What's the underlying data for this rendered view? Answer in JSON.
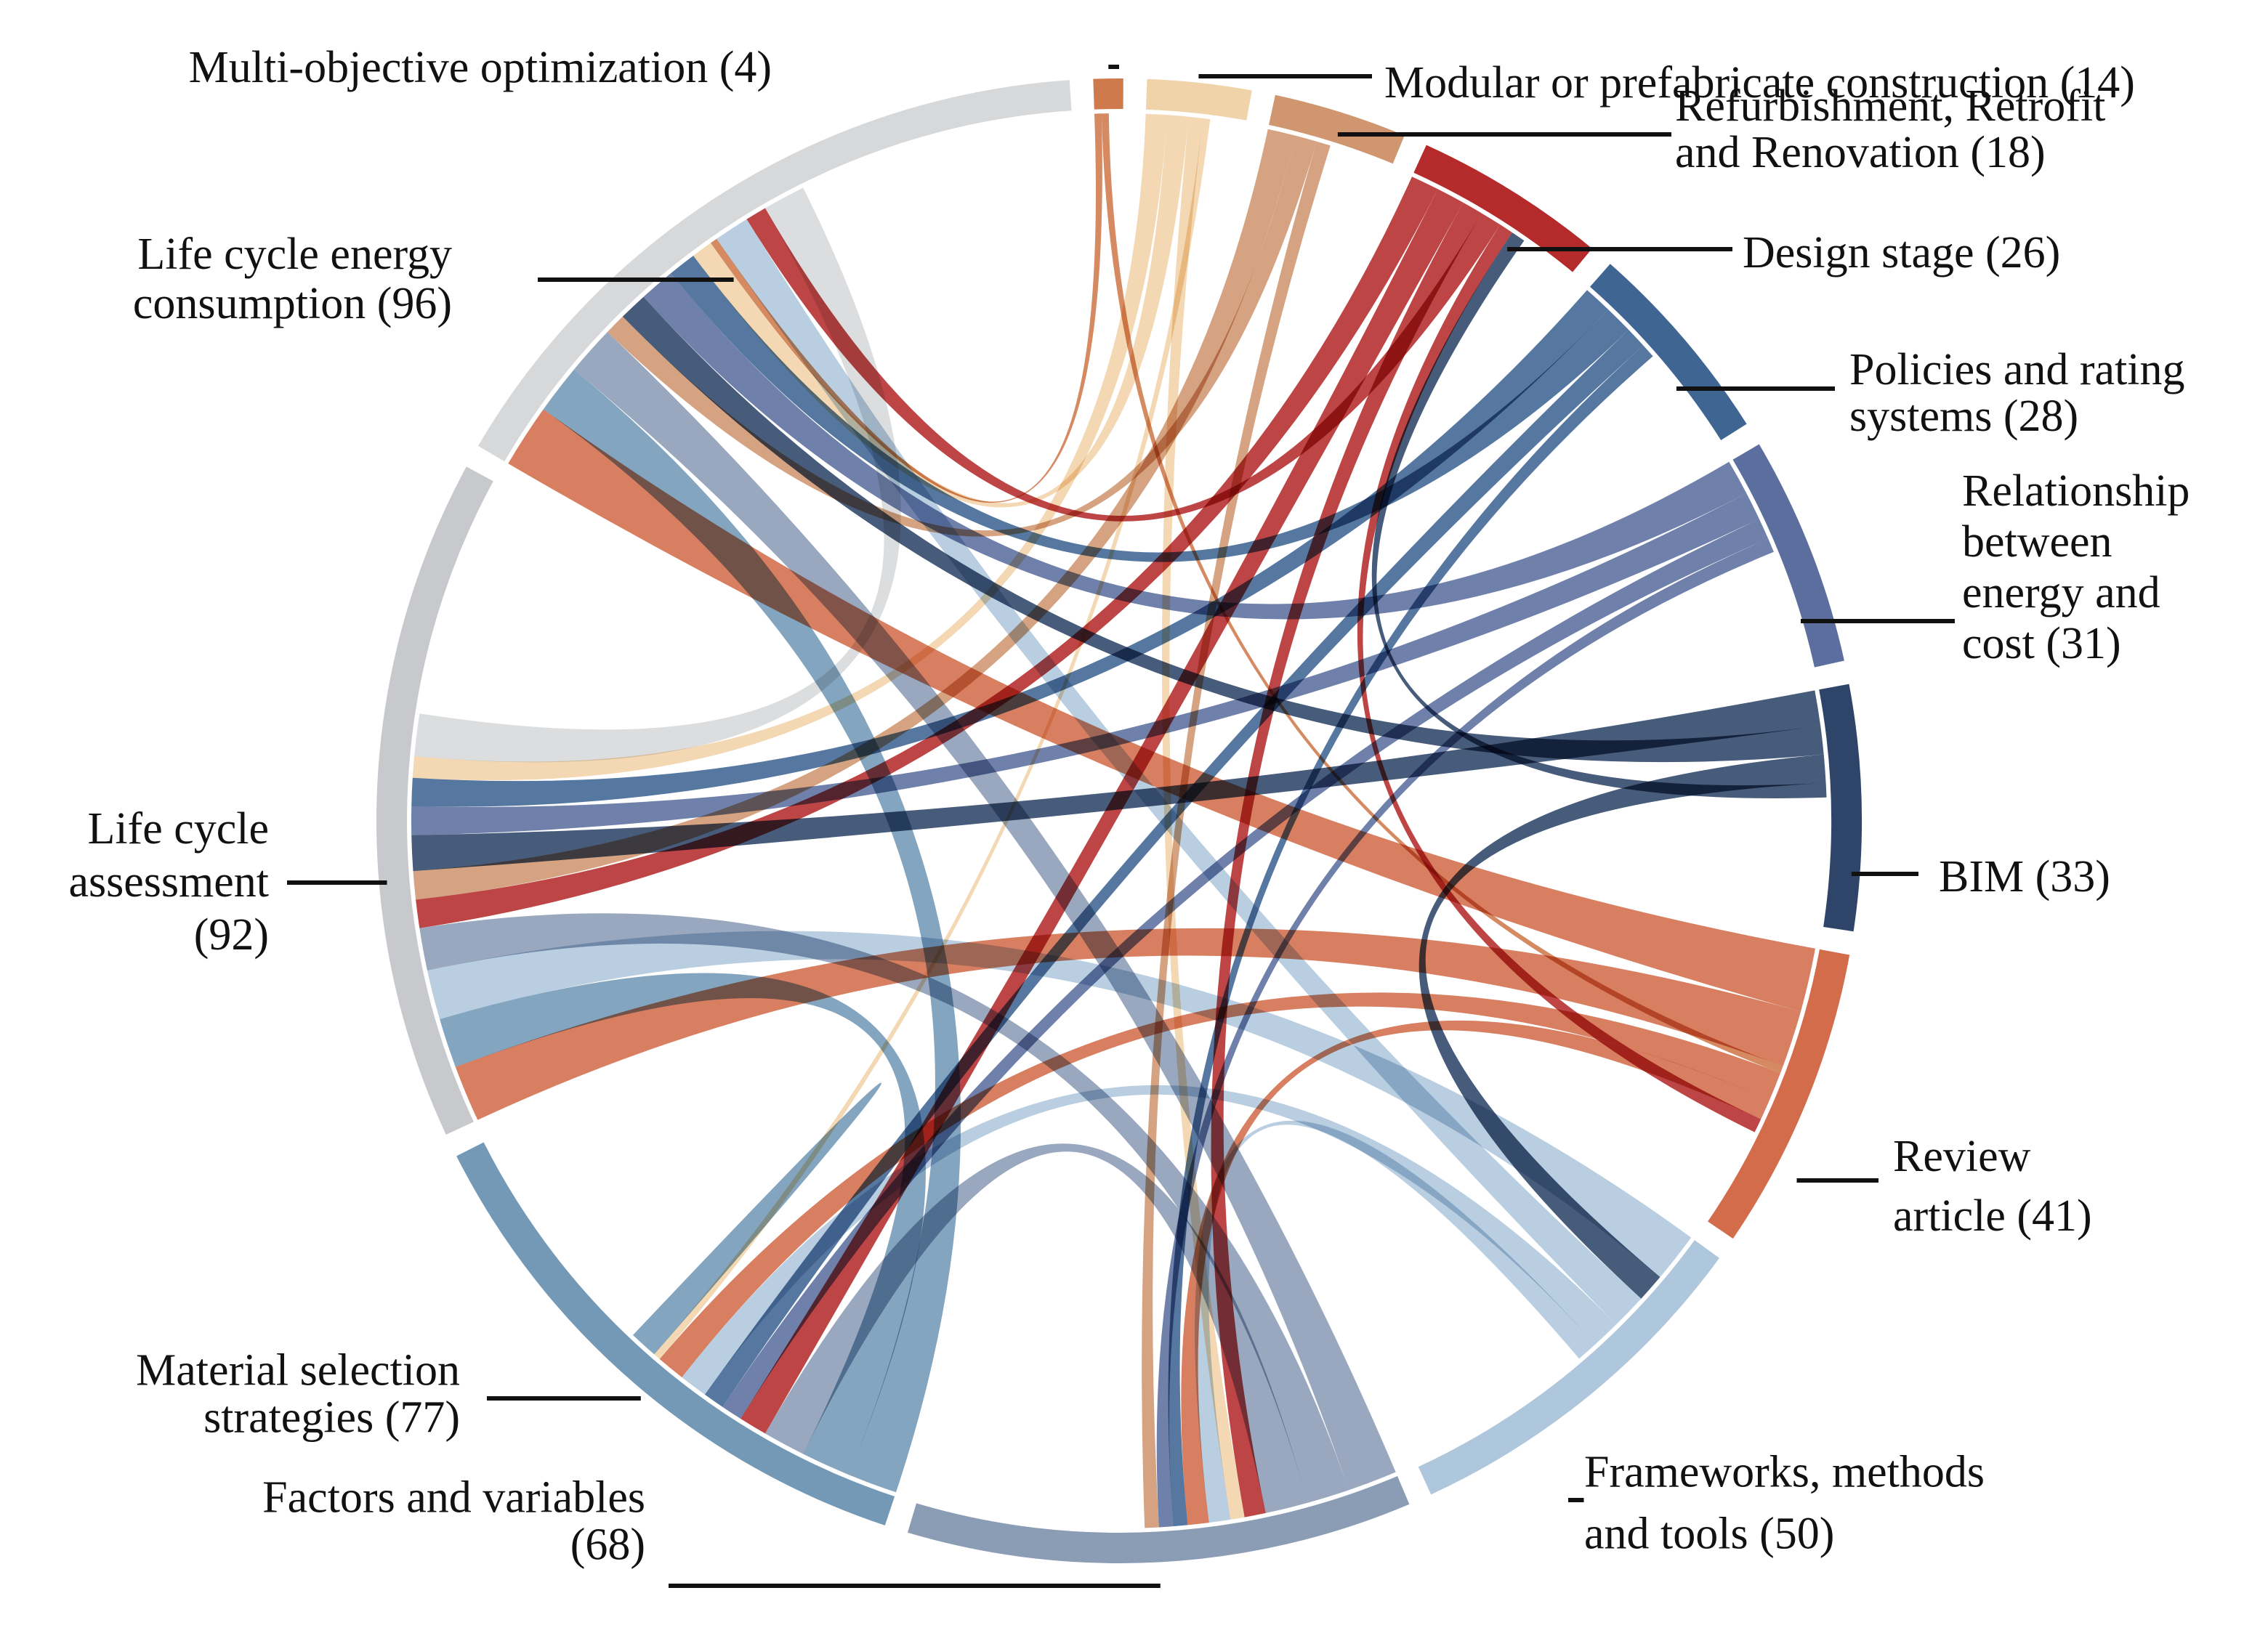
{
  "chart_data": {
    "type": "chord",
    "title": "",
    "groups": [
      {
        "id": "moo",
        "name": "Multi-objective optimization",
        "count": 4,
        "label_lines": [
          "Multi-objective optimization (4)"
        ],
        "color": "#cf7a4c"
      },
      {
        "id": "mod",
        "name": "Modular or prefabricate construction",
        "count": 14,
        "label_lines": [
          "Modular or prefabricate construction (14)"
        ],
        "color": "#f1d3a9"
      },
      {
        "id": "ref",
        "name": "Refurbishment, Retrofit and Renovation",
        "count": 18,
        "label_lines": [
          "Refurbishment, Retrofit",
          "and Renovation (18)"
        ],
        "color": "#cf9670"
      },
      {
        "id": "des",
        "name": "Design stage",
        "count": 26,
        "label_lines": [
          "Design stage (26)"
        ],
        "color": "#b52b2b"
      },
      {
        "id": "pol",
        "name": "Policies and rating systems",
        "count": 28,
        "label_lines": [
          "Policies and rating",
          "systems (28)"
        ],
        "color": "#3f6593"
      },
      {
        "id": "rel",
        "name": "Relationship between energy and cost",
        "count": 31,
        "label_lines": [
          "Relationship",
          "between",
          "energy and",
          "cost (31)"
        ],
        "color": "#5b6e9e"
      },
      {
        "id": "bim",
        "name": "BIM",
        "count": 33,
        "label_lines": [
          "BIM (33)"
        ],
        "color": "#2e4468"
      },
      {
        "id": "rev",
        "name": "Review article",
        "count": 41,
        "label_lines": [
          "Review",
          "article (41)"
        ],
        "color": "#d36c4b"
      },
      {
        "id": "fmt",
        "name": "Frameworks, methods and tools",
        "count": 50,
        "label_lines": [
          "Frameworks, methods",
          "and tools (50)"
        ],
        "color": "#afc7dc"
      },
      {
        "id": "fac",
        "name": "Factors and variables",
        "count": 68,
        "label_lines": [
          "Factors and variables",
          "(68)"
        ],
        "color": "#8b9cb5"
      },
      {
        "id": "mat",
        "name": "Material selection strategies",
        "count": 77,
        "label_lines": [
          "Material selection",
          "strategies (77)"
        ],
        "color": "#7399b6"
      },
      {
        "id": "lca",
        "name": "Life cycle assessment",
        "count": 92,
        "label_lines": [
          "Life cycle",
          "assessment",
          "(92)"
        ],
        "color": "#c7c9cd"
      },
      {
        "id": "lce",
        "name": "Life cycle energy consumption",
        "count": 96,
        "label_lines": [
          "Life cycle energy",
          "consumption (96)"
        ],
        "color": "#d7d8da"
      }
    ],
    "links": [
      {
        "source": "rev",
        "target": "lce",
        "value": 9
      },
      {
        "source": "rev",
        "target": "lca",
        "value": 8
      },
      {
        "source": "mat",
        "target": "lce",
        "value": 7
      },
      {
        "source": "mat",
        "target": "lca",
        "value": 7
      },
      {
        "source": "fmt",
        "target": "lca",
        "value": 7
      },
      {
        "source": "fac",
        "target": "lce",
        "value": 7
      },
      {
        "source": "fac",
        "target": "lca",
        "value": 6
      },
      {
        "source": "fac",
        "target": "mat",
        "value": 6
      },
      {
        "source": "des",
        "target": "lca",
        "value": 4
      },
      {
        "source": "des",
        "target": "mat",
        "value": 4
      },
      {
        "source": "des",
        "target": "fac",
        "value": 3
      },
      {
        "source": "ref",
        "target": "lca",
        "value": 4
      },
      {
        "source": "ref",
        "target": "lce",
        "value": 3
      },
      {
        "source": "bim",
        "target": "lca",
        "value": 5
      },
      {
        "source": "bim",
        "target": "lce",
        "value": 4
      },
      {
        "source": "bim",
        "target": "fmt",
        "value": 4
      },
      {
        "source": "rel",
        "target": "lce",
        "value": 5
      },
      {
        "source": "rel",
        "target": "lca",
        "value": 4
      },
      {
        "source": "rel",
        "target": "mat",
        "value": 3
      },
      {
        "source": "pol",
        "target": "lca",
        "value": 4
      },
      {
        "source": "pol",
        "target": "lce",
        "value": 4
      },
      {
        "source": "pol",
        "target": "mat",
        "value": 3
      },
      {
        "source": "mod",
        "target": "lca",
        "value": 3
      },
      {
        "source": "mod",
        "target": "lce",
        "value": 3
      },
      {
        "source": "mod",
        "target": "fac",
        "value": 2
      },
      {
        "source": "moo",
        "target": "lce",
        "value": 1
      },
      {
        "source": "moo",
        "target": "rev",
        "value": 1
      },
      {
        "source": "fmt",
        "target": "lce",
        "value": 5
      },
      {
        "source": "fmt",
        "target": "mat",
        "value": 4
      },
      {
        "source": "fmt",
        "target": "fac",
        "value": 3
      },
      {
        "source": "rev",
        "target": "mat",
        "value": 4
      },
      {
        "source": "rev",
        "target": "fac",
        "value": 3
      },
      {
        "source": "des",
        "target": "lce",
        "value": 3
      },
      {
        "source": "des",
        "target": "rev",
        "value": 2
      },
      {
        "source": "bim",
        "target": "des",
        "value": 2
      },
      {
        "source": "pol",
        "target": "fac",
        "value": 2
      },
      {
        "source": "rel",
        "target": "fac",
        "value": 2
      },
      {
        "source": "ref",
        "target": "fac",
        "value": 2
      },
      {
        "source": "mod",
        "target": "mat",
        "value": 1
      },
      {
        "source": "lce",
        "target": "lca",
        "value": 6
      },
      {
        "source": "mat",
        "target": "mat",
        "value": 2
      }
    ]
  }
}
